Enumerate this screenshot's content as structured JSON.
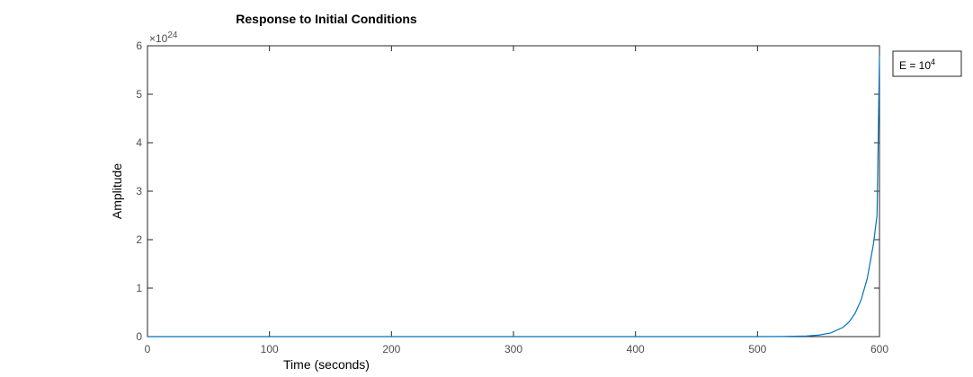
{
  "chart_data": {
    "type": "line",
    "title": "Response to Initial Conditions",
    "xlabel": "Time (seconds)",
    "ylabel": "Amplitude",
    "xlim": [
      0,
      600
    ],
    "ylim": [
      0,
      6
    ],
    "x_ticks": [
      "0",
      "100",
      "200",
      "300",
      "400",
      "500",
      "600"
    ],
    "y_ticks": [
      "0",
      "1",
      "2",
      "3",
      "4",
      "5",
      "6"
    ],
    "y_exponent": {
      "base": "×10",
      "power": "24"
    },
    "grid": false,
    "legend_position": "outside-top-right",
    "series": [
      {
        "name": "E = 10^4",
        "legend_text": "E = 10",
        "legend_power": "4",
        "color": "#0072bd",
        "x": [
          0,
          100,
          200,
          300,
          400,
          500,
          520,
          540,
          550,
          560,
          570,
          575,
          580,
          585,
          590,
          595,
          598,
          600
        ],
        "y": [
          0,
          0,
          0,
          0,
          0,
          0,
          0.002,
          0.012,
          0.03,
          0.075,
          0.19,
          0.3,
          0.48,
          0.76,
          1.2,
          1.9,
          2.5,
          5.8
        ]
      }
    ]
  }
}
